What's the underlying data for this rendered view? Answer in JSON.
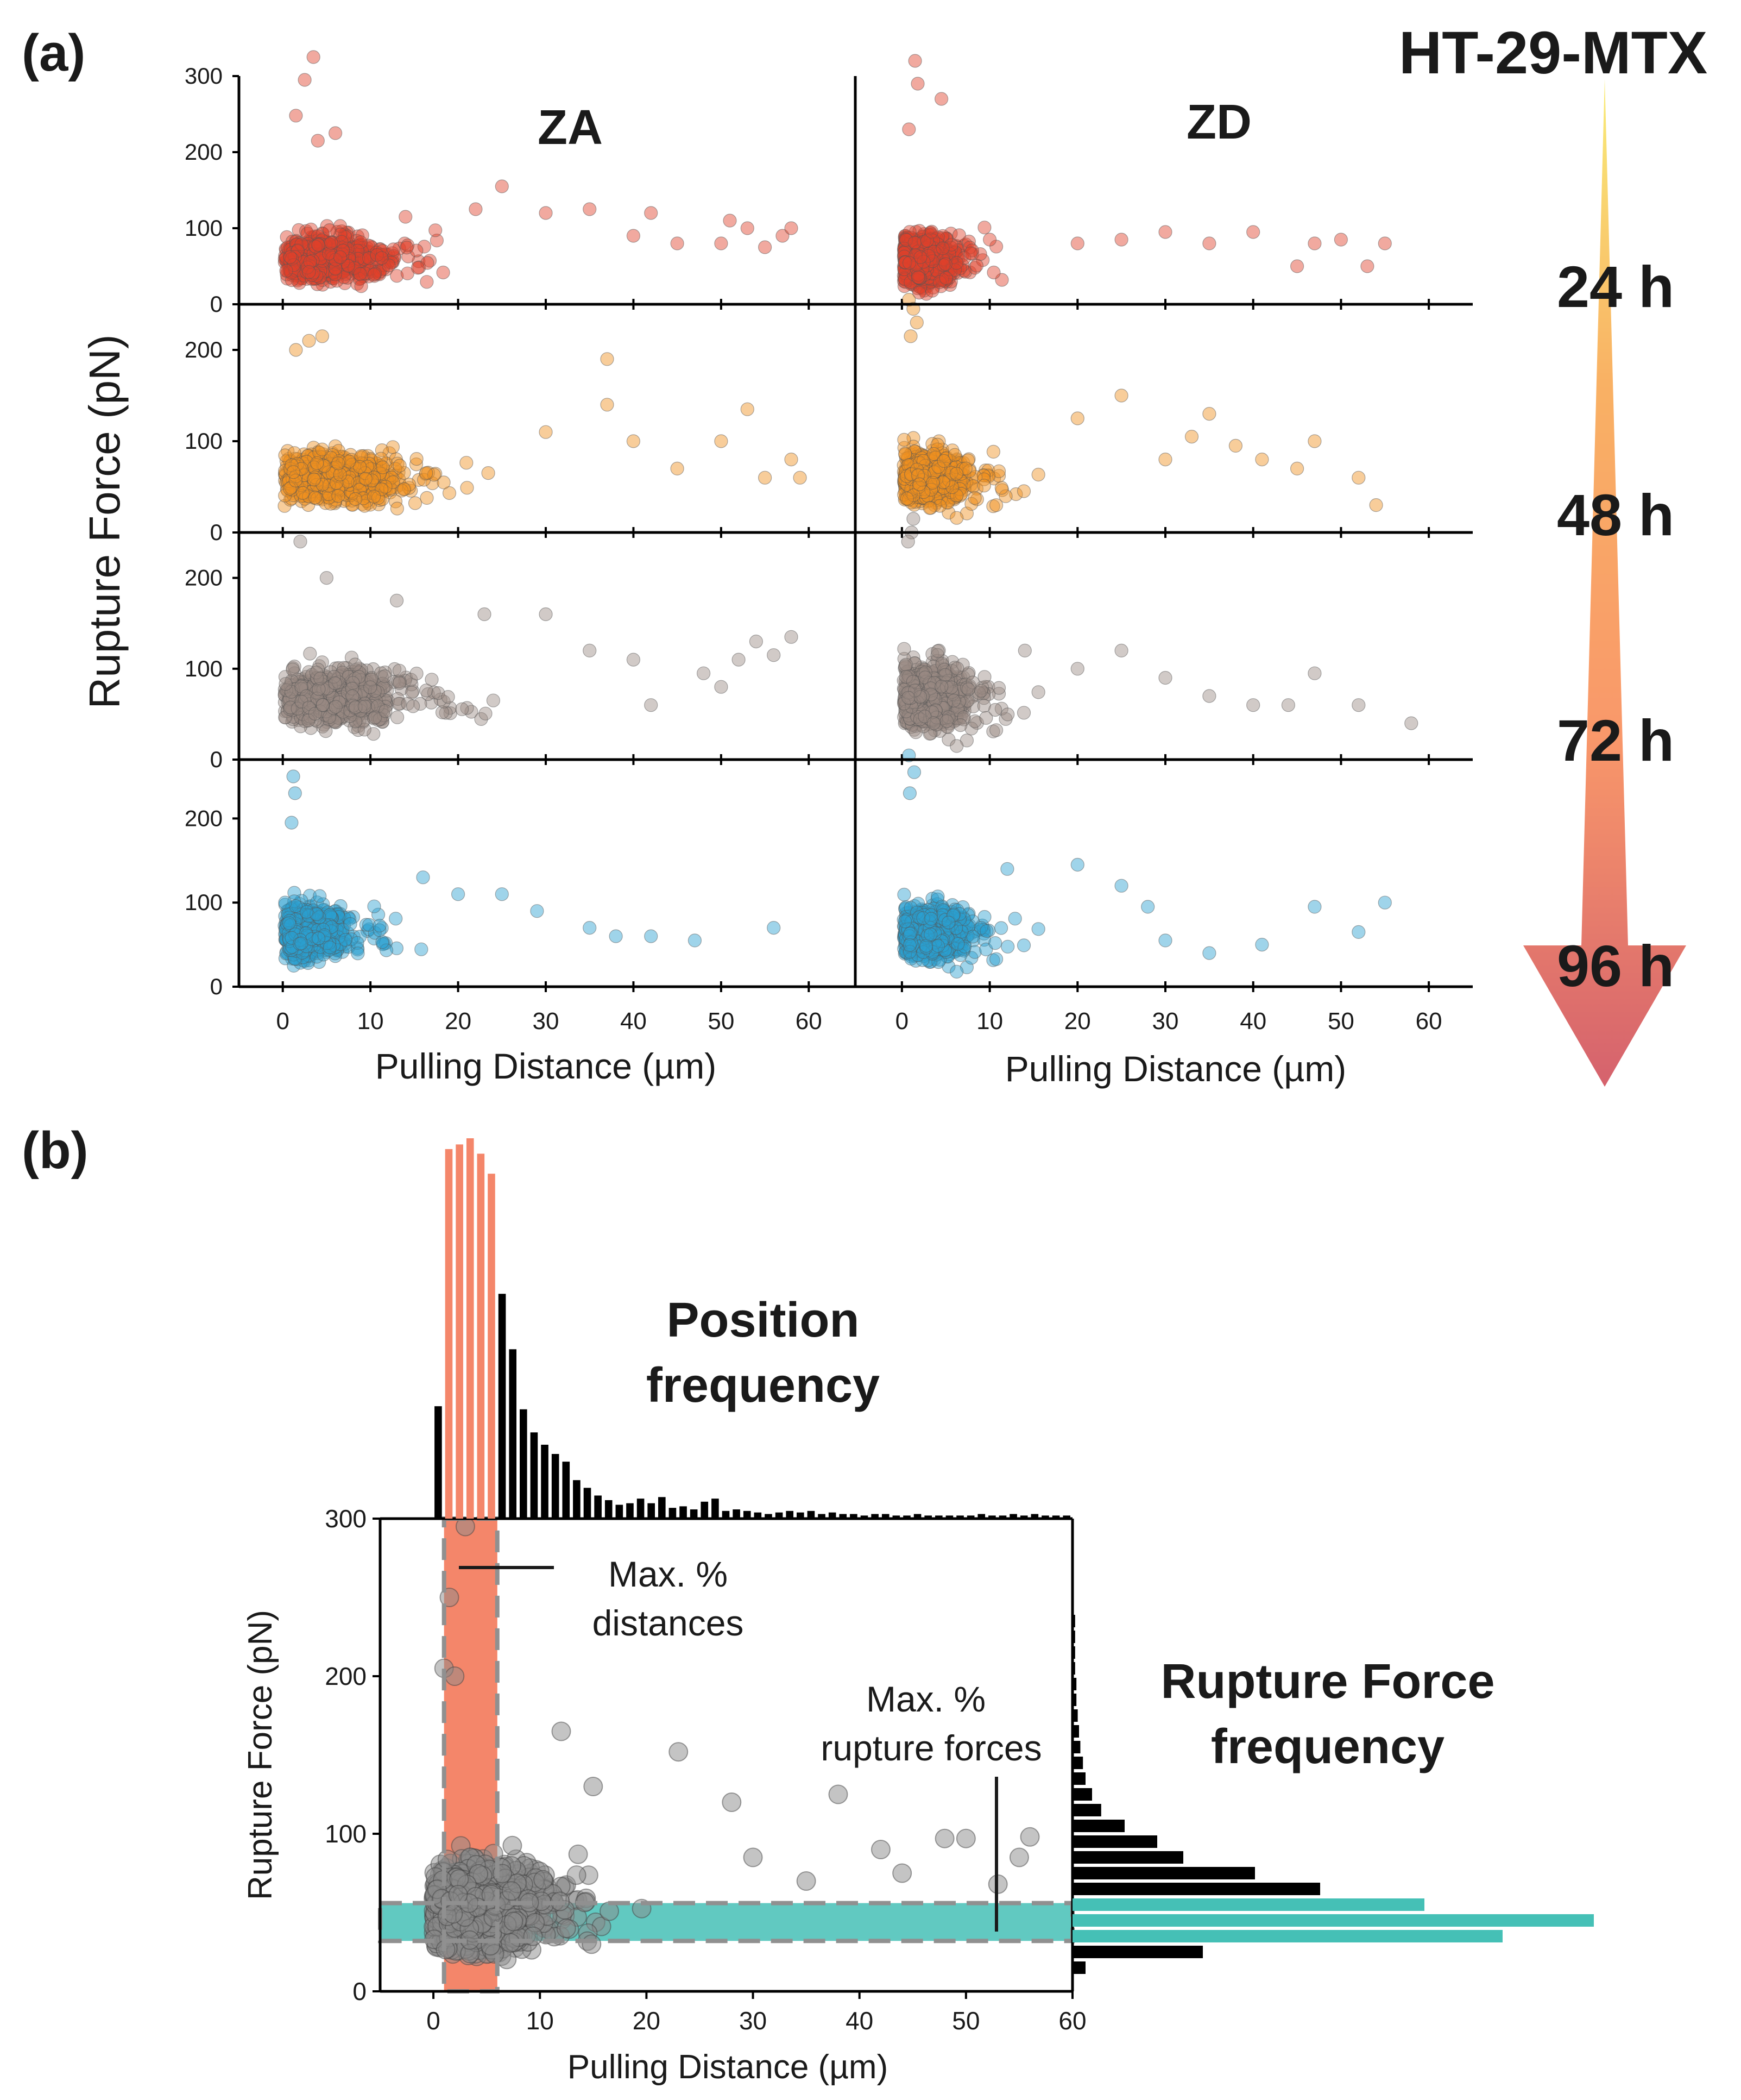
{
  "figure": {
    "title": "HT-29-MTX",
    "panel_a_label": "(a)",
    "panel_b_label": "(b)"
  },
  "chart_data": [
    {
      "panel": "a",
      "type": "scatter",
      "description": "2 columns x 4 rows of scatter plots, one per junction type and time point",
      "columns": [
        "ZA",
        "ZD"
      ],
      "rows": [
        {
          "time": "24 h",
          "color": "#e0402b",
          "ylim": [
            0,
            300
          ],
          "yticks": [
            0,
            100,
            200,
            300
          ]
        },
        {
          "time": "48 h",
          "color": "#f0901e",
          "ylim": [
            0,
            250
          ],
          "yticks": [
            0,
            100,
            200
          ]
        },
        {
          "time": "72 h",
          "color": "#9a8a83",
          "ylim": [
            0,
            250
          ],
          "yticks": [
            0,
            100,
            200
          ]
        },
        {
          "time": "96 h",
          "color": "#2a9fd0",
          "ylim": [
            0,
            270
          ],
          "yticks": [
            0,
            100,
            200
          ]
        }
      ],
      "xlabel": "Pulling Distance (µm)",
      "ylabel": "Rupture Force (pN)",
      "xlim": [
        -5,
        65
      ],
      "xticks": [
        0,
        10,
        20,
        30,
        40,
        50,
        60
      ],
      "series": [
        {
          "name": "ZA 24 h",
          "cluster": {
            "x_mean": 5,
            "x_spread": 5,
            "y_mean": 60,
            "y_spread": 28
          },
          "outliers": [
            [
              3.5,
              325
            ],
            [
              2.5,
              295
            ],
            [
              1.5,
              248
            ],
            [
              6,
              225
            ],
            [
              4,
              215
            ],
            [
              14,
              115
            ],
            [
              22,
              125
            ],
            [
              25,
              155
            ],
            [
              30,
              120
            ],
            [
              35,
              125
            ],
            [
              40,
              90
            ],
            [
              42,
              120
            ],
            [
              45,
              80
            ],
            [
              50,
              80
            ],
            [
              51,
              110
            ],
            [
              53,
              100
            ],
            [
              55,
              75
            ],
            [
              57,
              90
            ],
            [
              58,
              100
            ]
          ]
        },
        {
          "name": "ZD 24 h",
          "cluster": {
            "x_mean": 2.5,
            "x_spread": 3,
            "y_mean": 60,
            "y_spread": 32
          },
          "outliers": [
            [
              1.5,
              320
            ],
            [
              1.8,
              290
            ],
            [
              4.5,
              270
            ],
            [
              0.8,
              230
            ],
            [
              10,
              85
            ],
            [
              20,
              80
            ],
            [
              25,
              85
            ],
            [
              30,
              95
            ],
            [
              35,
              80
            ],
            [
              40,
              95
            ],
            [
              45,
              50
            ],
            [
              47,
              80
            ],
            [
              50,
              85
            ],
            [
              53,
              50
            ],
            [
              55,
              80
            ]
          ]
        },
        {
          "name": "ZA 48 h",
          "cluster": {
            "x_mean": 6,
            "x_spread": 6,
            "y_mean": 60,
            "y_spread": 25
          },
          "outliers": [
            [
              3,
              210
            ],
            [
              4.5,
              215
            ],
            [
              1.5,
              200
            ],
            [
              37,
              190
            ],
            [
              30,
              110
            ],
            [
              37,
              140
            ],
            [
              40,
              100
            ],
            [
              45,
              70
            ],
            [
              50,
              100
            ],
            [
              53,
              135
            ],
            [
              55,
              60
            ],
            [
              58,
              80
            ],
            [
              59,
              60
            ]
          ]
        },
        {
          "name": "ZD 48 h",
          "cluster": {
            "x_mean": 3,
            "x_spread": 3.5,
            "y_mean": 60,
            "y_spread": 28
          },
          "outliers": [
            [
              0.8,
              255
            ],
            [
              1.3,
              245
            ],
            [
              1.7,
              230
            ],
            [
              1,
              215
            ],
            [
              20,
              125
            ],
            [
              25,
              150
            ],
            [
              30,
              80
            ],
            [
              33,
              105
            ],
            [
              35,
              130
            ],
            [
              38,
              95
            ],
            [
              41,
              80
            ],
            [
              45,
              70
            ],
            [
              47,
              100
            ],
            [
              52,
              60
            ],
            [
              54,
              30
            ]
          ]
        },
        {
          "name": "ZA 72 h",
          "cluster": {
            "x_mean": 6,
            "x_spread": 6,
            "y_mean": 70,
            "y_spread": 30
          },
          "outliers": [
            [
              2,
              240
            ],
            [
              5,
              200
            ],
            [
              13,
              175
            ],
            [
              23,
              160
            ],
            [
              30,
              160
            ],
            [
              35,
              120
            ],
            [
              40,
              110
            ],
            [
              42,
              60
            ],
            [
              48,
              95
            ],
            [
              50,
              80
            ],
            [
              52,
              110
            ],
            [
              54,
              130
            ],
            [
              56,
              115
            ],
            [
              58,
              135
            ]
          ]
        },
        {
          "name": "ZD 72 h",
          "cluster": {
            "x_mean": 3,
            "x_spread": 3.5,
            "y_mean": 70,
            "y_spread": 35
          },
          "outliers": [
            [
              1.3,
              265
            ],
            [
              1.1,
              250
            ],
            [
              0.7,
              240
            ],
            [
              14,
              120
            ],
            [
              20,
              100
            ],
            [
              25,
              120
            ],
            [
              30,
              90
            ],
            [
              35,
              70
            ],
            [
              40,
              60
            ],
            [
              44,
              60
            ],
            [
              47,
              95
            ],
            [
              52,
              60
            ],
            [
              58,
              40
            ]
          ]
        },
        {
          "name": "ZA 96 h",
          "cluster": {
            "x_mean": 3,
            "x_spread": 3.5,
            "y_mean": 65,
            "y_spread": 30
          },
          "outliers": [
            [
              1.2,
              250
            ],
            [
              1.4,
              230
            ],
            [
              1,
              195
            ],
            [
              16,
              130
            ],
            [
              20,
              110
            ],
            [
              25,
              110
            ],
            [
              29,
              90
            ],
            [
              35,
              70
            ],
            [
              38,
              60
            ],
            [
              42,
              60
            ],
            [
              47,
              55
            ],
            [
              56,
              70
            ]
          ]
        },
        {
          "name": "ZD 96 h",
          "cluster": {
            "x_mean": 3,
            "x_spread": 3.5,
            "y_mean": 65,
            "y_spread": 30
          },
          "outliers": [
            [
              0.8,
              275
            ],
            [
              1.4,
              255
            ],
            [
              0.9,
              230
            ],
            [
              12,
              140
            ],
            [
              20,
              145
            ],
            [
              25,
              120
            ],
            [
              28,
              95
            ],
            [
              30,
              55
            ],
            [
              35,
              40
            ],
            [
              41,
              50
            ],
            [
              47,
              95
            ],
            [
              52,
              65
            ],
            [
              55,
              100
            ]
          ]
        }
      ]
    },
    {
      "panel": "b",
      "type": "scatter",
      "description": "Scatter with marginal histograms of pulling distance (top) and rupture force (right)",
      "xlabel": "Pulling Distance (µm)",
      "ylabel": "Rupture Force (pN)",
      "xlim": [
        -5,
        60
      ],
      "ylim": [
        0,
        300
      ],
      "xticks": [
        0,
        10,
        20,
        30,
        40,
        50,
        60
      ],
      "yticks": [
        0,
        100,
        200,
        300
      ],
      "scatter_color": "#8a8a8a",
      "highlight_x_range": [
        1,
        6
      ],
      "highlight_y_range": [
        32,
        56
      ],
      "highlight_x_color": "#f4866a",
      "highlight_y_color": "#45c0b6",
      "annotations": {
        "max_distances": [
          "Max. %",
          "distances"
        ],
        "max_forces": [
          "Max. %",
          "rupture forces"
        ],
        "position_frequency": [
          "Position",
          "frequency"
        ],
        "rupture_force_frequency": [
          "Rupture Force",
          "frequency"
        ]
      },
      "position_histogram": {
        "bin_width": 1,
        "bin_start": 0,
        "counts": [
          73,
          240,
          243,
          247,
          237,
          224,
          146,
          110,
          71,
          56,
          48,
          42,
          37,
          25,
          20,
          15,
          12,
          9,
          10,
          13,
          10,
          14,
          7,
          8,
          6,
          11,
          13,
          5,
          6,
          5,
          4,
          3,
          4,
          5,
          4,
          5,
          3,
          4,
          3,
          3,
          2,
          3,
          3,
          2,
          2,
          3,
          2,
          2,
          2,
          2,
          2,
          3,
          2,
          2,
          3,
          2,
          3,
          2,
          2,
          2
        ],
        "highlighted_bins": [
          1,
          2,
          3,
          4,
          5
        ]
      },
      "force_histogram": {
        "bin_width": 10,
        "bin_start": 10,
        "counts": [
          10,
          100,
          330,
          400,
          270,
          190,
          140,
          85,
          65,
          40,
          22,
          15,
          10,
          8,
          6,
          5,
          4,
          3,
          3,
          2,
          2,
          2,
          2,
          1,
          1,
          1,
          1,
          1,
          1
        ],
        "highlighted_bins": [
          2,
          3,
          4
        ]
      }
    }
  ]
}
